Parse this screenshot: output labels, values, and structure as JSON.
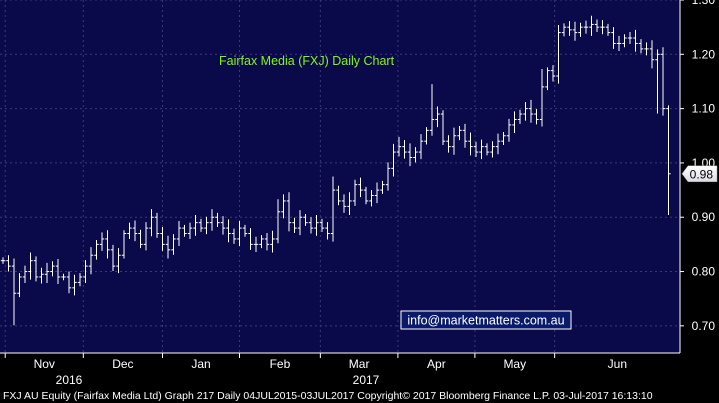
{
  "chart_data": {
    "type": "ohlc",
    "title": "Fairfax Media (FXJ) Daily Chart",
    "title_color": "#7CFC00",
    "background_color": "#0a0a4a",
    "bar_color": "#ffffff",
    "ylim": [
      0.65,
      1.3
    ],
    "yticks": [
      "0.70",
      "0.80",
      "0.90",
      "1.00",
      "1.10",
      "1.20",
      "1.30"
    ],
    "last_price_label": "0.98",
    "last_price": 0.98,
    "months": [
      {
        "label": "Nov",
        "position": 0.4
      },
      {
        "label": "Dec",
        "position": 14.6
      },
      {
        "label": "Jan",
        "position": 29.0
      },
      {
        "label": "Feb",
        "position": 43.0
      },
      {
        "label": "Mar",
        "position": 57.7
      },
      {
        "label": "Apr",
        "position": 71.8
      },
      {
        "label": "May",
        "position": 85.8
      },
      {
        "label": "Jun",
        "position": 100.3
      }
    ],
    "years": [
      {
        "label": "2016",
        "position": 12.0
      },
      {
        "label": "2017",
        "position": 66.0
      }
    ],
    "watermark": "info@marketmatters.com.au",
    "footer": "FXJ AU Equity (Fairfax Media Ltd) Graph 217  Daily 04JUL2015-03JUL2017 Copyright© 2017 Bloomberg Finance L.P.  03-Jul-2017 16:13:10",
    "closes": [
      0.82,
      0.81,
      0.76,
      0.79,
      0.8,
      0.82,
      0.79,
      0.795,
      0.8,
      0.81,
      0.79,
      0.79,
      0.77,
      0.78,
      0.79,
      0.81,
      0.83,
      0.85,
      0.86,
      0.84,
      0.81,
      0.83,
      0.87,
      0.88,
      0.87,
      0.85,
      0.88,
      0.9,
      0.87,
      0.85,
      0.84,
      0.86,
      0.88,
      0.87,
      0.88,
      0.89,
      0.88,
      0.89,
      0.9,
      0.89,
      0.88,
      0.87,
      0.86,
      0.88,
      0.87,
      0.85,
      0.85,
      0.86,
      0.85,
      0.86,
      0.91,
      0.93,
      0.89,
      0.88,
      0.9,
      0.89,
      0.88,
      0.89,
      0.88,
      0.87,
      0.95,
      0.93,
      0.92,
      0.93,
      0.96,
      0.95,
      0.93,
      0.94,
      0.95,
      0.96,
      0.99,
      1.02,
      1.03,
      1.02,
      1.01,
      1.02,
      1.04,
      1.06,
      1.08,
      1.09,
      1.04,
      1.03,
      1.05,
      1.06,
      1.04,
      1.03,
      1.02,
      1.03,
      1.02,
      1.03,
      1.04,
      1.05,
      1.07,
      1.08,
      1.09,
      1.1,
      1.09,
      1.08,
      1.14,
      1.17,
      1.16,
      1.24,
      1.25,
      1.245,
      1.24,
      1.25,
      1.25,
      1.255,
      1.25,
      1.25,
      1.24,
      1.22,
      1.22,
      1.23,
      1.23,
      1.22,
      1.21,
      1.21,
      1.19,
      1.2,
      1.1,
      0.98
    ]
  }
}
